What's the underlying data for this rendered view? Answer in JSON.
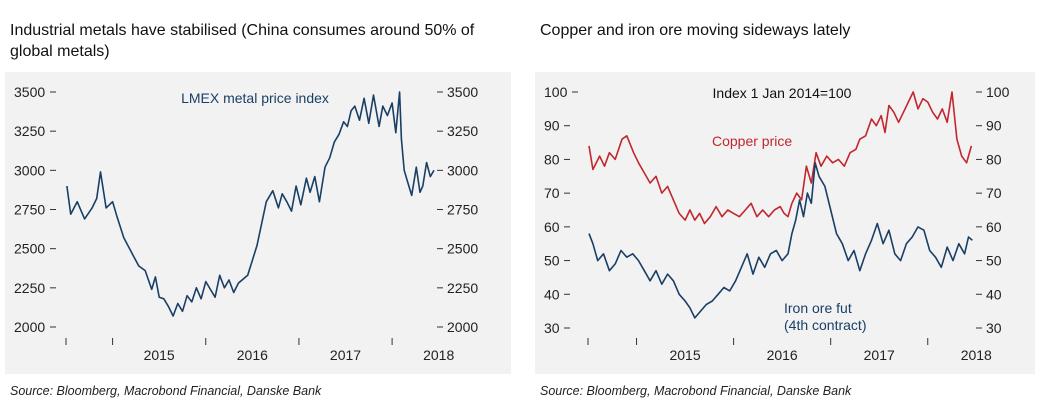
{
  "chart_data": [
    {
      "type": "line",
      "title": "Industrial metals have stabilised (China consumes around 50% of global metals)",
      "source": "Source: Bloomberg, Macrobond Financial, Danske Bank",
      "xlabels": [
        "2015",
        "2016",
        "2017",
        "2018"
      ],
      "xlim": [
        2014.5,
        2018.6
      ],
      "ylim": [
        2000,
        3500
      ],
      "yticks": [
        3500,
        3250,
        3000,
        2750,
        2500,
        2250,
        2000
      ],
      "series": [
        {
          "name": "LMEX metal price index",
          "color": "#1a3f66",
          "x": [
            2014.51,
            2014.55,
            2014.62,
            2014.7,
            2014.78,
            2014.83,
            2014.87,
            2014.93,
            2015.0,
            2015.05,
            2015.12,
            2015.2,
            2015.28,
            2015.35,
            2015.42,
            2015.46,
            2015.5,
            2015.55,
            2015.6,
            2015.65,
            2015.7,
            2015.75,
            2015.8,
            2015.85,
            2015.9,
            2015.95,
            2016.0,
            2016.05,
            2016.1,
            2016.15,
            2016.2,
            2016.25,
            2016.3,
            2016.35,
            2016.45,
            2016.55,
            2016.65,
            2016.72,
            2016.78,
            2016.82,
            2016.87,
            2016.92,
            2016.97,
            2017.02,
            2017.08,
            2017.12,
            2017.17,
            2017.22,
            2017.28,
            2017.33,
            2017.38,
            2017.43,
            2017.48,
            2017.52,
            2017.56,
            2017.6,
            2017.65,
            2017.7,
            2017.75,
            2017.8,
            2017.86,
            2017.9,
            2017.95,
            2018.0,
            2018.04,
            2018.08,
            2018.1,
            2018.13,
            2018.17,
            2018.21,
            2018.26,
            2018.3,
            2018.33,
            2018.37,
            2018.41,
            2018.45
          ],
          "values": [
            2900,
            2720,
            2800,
            2690,
            2760,
            2820,
            2990,
            2760,
            2800,
            2700,
            2570,
            2480,
            2390,
            2360,
            2240,
            2320,
            2190,
            2180,
            2130,
            2070,
            2150,
            2100,
            2200,
            2160,
            2250,
            2180,
            2290,
            2240,
            2190,
            2330,
            2250,
            2300,
            2220,
            2280,
            2330,
            2520,
            2800,
            2870,
            2760,
            2850,
            2800,
            2740,
            2900,
            2780,
            2950,
            2860,
            2960,
            2800,
            3020,
            3080,
            3180,
            3230,
            3310,
            3280,
            3380,
            3410,
            3320,
            3460,
            3300,
            3480,
            3280,
            3410,
            3350,
            3430,
            3240,
            3500,
            3200,
            3000,
            2920,
            2840,
            3020,
            2860,
            2900,
            3050,
            2960,
            3000
          ]
        }
      ],
      "annotations": [
        "LMEX metal price index"
      ]
    },
    {
      "type": "line",
      "title": "Copper and iron ore moving sideways lately",
      "subtitle": "Index 1 Jan 2014=100",
      "source": "Source: Bloomberg, Macrobond Financial, Danske Bank",
      "xlabels": [
        "2015",
        "2016",
        "2017",
        "2018"
      ],
      "xlim": [
        2014.5,
        2018.6
      ],
      "ylim": [
        30,
        100
      ],
      "yticks": [
        100,
        90,
        80,
        70,
        60,
        50,
        40,
        30
      ],
      "series": [
        {
          "name": "Copper price",
          "color": "#c1272d",
          "x": [
            2014.51,
            2014.55,
            2014.62,
            2014.67,
            2014.72,
            2014.78,
            2014.85,
            2014.9,
            2014.97,
            2015.02,
            2015.08,
            2015.14,
            2015.2,
            2015.26,
            2015.32,
            2015.38,
            2015.44,
            2015.5,
            2015.55,
            2015.6,
            2015.65,
            2015.7,
            2015.76,
            2015.82,
            2015.88,
            2015.94,
            2016.0,
            2016.06,
            2016.12,
            2016.18,
            2016.24,
            2016.3,
            2016.36,
            2016.42,
            2016.48,
            2016.52,
            2016.56,
            2016.6,
            2016.65,
            2016.7,
            2016.75,
            2016.8,
            2016.85,
            2016.9,
            2016.96,
            2017.02,
            2017.08,
            2017.14,
            2017.2,
            2017.26,
            2017.3,
            2017.36,
            2017.42,
            2017.47,
            2017.52,
            2017.56,
            2017.6,
            2017.65,
            2017.7,
            2017.75,
            2017.8,
            2017.85,
            2017.9,
            2017.95,
            2018.0,
            2018.05,
            2018.1,
            2018.15,
            2018.2,
            2018.25,
            2018.3,
            2018.35,
            2018.4,
            2018.45
          ],
          "values": [
            84,
            77,
            81,
            78,
            82,
            80,
            86,
            87,
            82,
            79,
            76,
            73,
            75,
            70,
            72,
            68,
            64,
            62,
            65,
            62,
            64,
            61,
            63,
            66,
            63,
            65,
            64,
            63,
            65,
            67,
            63,
            65,
            63,
            65,
            66,
            64,
            63,
            67,
            70,
            68,
            78,
            73,
            82,
            78,
            81,
            79,
            80,
            78,
            82,
            83,
            86,
            87,
            92,
            90,
            93,
            88,
            96,
            94,
            91,
            94,
            97,
            100,
            95,
            98,
            97,
            94,
            92,
            95,
            91,
            100,
            86,
            81,
            79,
            84
          ]
        },
        {
          "name": "Iron ore fut (4th contract)",
          "color": "#1a3f66",
          "x": [
            2014.51,
            2014.55,
            2014.6,
            2014.66,
            2014.72,
            2014.78,
            2014.84,
            2014.9,
            2014.96,
            2015.02,
            2015.08,
            2015.14,
            2015.2,
            2015.26,
            2015.32,
            2015.38,
            2015.44,
            2015.5,
            2015.55,
            2015.6,
            2015.66,
            2015.72,
            2015.78,
            2015.84,
            2015.9,
            2015.96,
            2016.02,
            2016.08,
            2016.14,
            2016.2,
            2016.26,
            2016.32,
            2016.38,
            2016.44,
            2016.5,
            2016.56,
            2016.6,
            2016.64,
            2016.68,
            2016.72,
            2016.76,
            2016.8,
            2016.84,
            2016.88,
            2016.94,
            2017.0,
            2017.06,
            2017.12,
            2017.18,
            2017.24,
            2017.3,
            2017.36,
            2017.42,
            2017.48,
            2017.54,
            2017.6,
            2017.66,
            2017.72,
            2017.78,
            2017.84,
            2017.9,
            2017.96,
            2018.02,
            2018.08,
            2018.14,
            2018.2,
            2018.26,
            2018.32,
            2018.38,
            2018.42,
            2018.46
          ],
          "values": [
            58,
            55,
            50,
            52,
            47,
            49,
            53,
            51,
            52,
            50,
            47,
            44,
            47,
            43,
            46,
            44,
            40,
            38,
            36,
            33,
            35,
            37,
            38,
            40,
            42,
            41,
            44,
            48,
            52,
            46,
            51,
            48,
            52,
            53,
            50,
            52,
            58,
            62,
            68,
            63,
            70,
            67,
            79,
            75,
            72,
            65,
            58,
            55,
            50,
            53,
            47,
            52,
            56,
            61,
            55,
            59,
            52,
            50,
            55,
            57,
            60,
            59,
            53,
            51,
            48,
            54,
            50,
            55,
            52,
            57,
            56
          ]
        }
      ],
      "annotations": [
        "Copper price",
        "Iron ore fut",
        "(4th contract)"
      ]
    }
  ]
}
